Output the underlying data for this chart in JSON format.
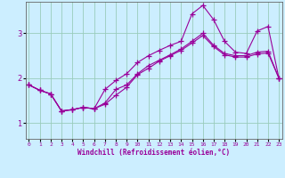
{
  "xlabel": "Windchill (Refroidissement éolien,°C)",
  "x_ticks": [
    0,
    1,
    2,
    3,
    4,
    5,
    6,
    7,
    8,
    9,
    10,
    11,
    12,
    13,
    14,
    15,
    16,
    17,
    18,
    19,
    20,
    21,
    22,
    23
  ],
  "y_ticks": [
    1,
    2,
    3
  ],
  "xlim": [
    -0.3,
    23.3
  ],
  "ylim": [
    0.65,
    3.7
  ],
  "line_color": "#990099",
  "bg_color": "#cceeff",
  "grid_color": "#99ccbb",
  "line1_x": [
    0,
    1,
    2,
    3,
    4,
    5,
    6,
    7,
    8,
    9,
    10,
    11,
    12,
    13,
    14,
    15,
    16,
    17,
    18,
    19,
    20,
    21,
    22,
    23
  ],
  "line1_y": [
    1.85,
    1.73,
    1.65,
    1.27,
    1.3,
    1.35,
    1.32,
    1.45,
    1.75,
    1.85,
    2.1,
    2.28,
    2.4,
    2.52,
    2.65,
    2.82,
    3.0,
    2.73,
    2.55,
    2.5,
    2.5,
    2.58,
    2.6,
    2.0
  ],
  "line2_x": [
    0,
    1,
    2,
    3,
    4,
    5,
    6,
    7,
    8,
    9,
    10,
    11,
    12,
    13,
    14,
    15,
    16,
    17,
    18,
    19,
    20,
    21,
    22,
    23
  ],
  "line2_y": [
    1.85,
    1.73,
    1.65,
    1.27,
    1.3,
    1.35,
    1.32,
    1.42,
    1.62,
    1.8,
    2.08,
    2.22,
    2.38,
    2.5,
    2.62,
    2.78,
    2.95,
    2.7,
    2.52,
    2.47,
    2.47,
    2.54,
    2.56,
    2.0
  ],
  "line3_x": [
    0,
    1,
    2,
    3,
    4,
    5,
    6,
    7,
    8,
    9,
    10,
    11,
    12,
    13,
    14,
    15,
    16,
    17,
    18,
    19,
    20,
    21,
    22,
    23
  ],
  "line3_y": [
    1.85,
    1.73,
    1.65,
    1.27,
    1.3,
    1.35,
    1.32,
    1.75,
    1.95,
    2.1,
    2.35,
    2.5,
    2.62,
    2.73,
    2.82,
    3.43,
    3.62,
    3.3,
    2.82,
    2.58,
    2.55,
    3.05,
    3.15,
    2.0
  ]
}
